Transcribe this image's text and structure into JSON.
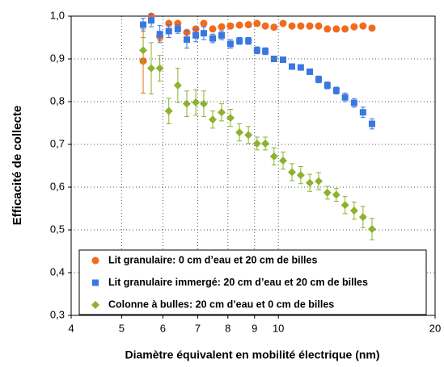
{
  "chart_data": {
    "type": "scatter",
    "xlabel": "Diamètre équivalent en mobilité électrique (nm)",
    "ylabel": "Efficacité de collecte",
    "x": [
      5.5,
      5.7,
      5.92,
      6.16,
      6.41,
      6.67,
      6.94,
      7.19,
      7.48,
      7.78,
      8.09,
      8.42,
      8.76,
      9.1,
      9.44,
      9.81,
      10.21,
      10.62,
      11.04,
      11.49,
      11.95,
      12.42,
      12.92,
      13.43,
      13.98,
      14.54,
      15.13
    ],
    "series": [
      {
        "name": "Lit granulaire: 0 cm d’eau et 20 cm de billes",
        "color": "#f26a1b",
        "marker": "circle",
        "values": [
          0.895,
          1.0,
          0.952,
          0.983,
          0.983,
          0.962,
          0.97,
          0.983,
          0.97,
          0.975,
          0.977,
          0.979,
          0.98,
          0.983,
          0.977,
          0.974,
          0.983,
          0.977,
          0.977,
          0.977,
          0.977,
          0.97,
          0.97,
          0.97,
          0.975,
          0.977,
          0.972
        ],
        "errors": [
          0.075,
          0.005,
          0.01,
          0.005,
          0.005,
          0.005,
          0.005,
          0.005,
          0.005,
          0.005,
          0.005,
          0.005,
          0.005,
          0.005,
          0.005,
          0.005,
          0.005,
          0.005,
          0.005,
          0.005,
          0.005,
          0.005,
          0.005,
          0.005,
          0.005,
          0.005,
          0.005
        ]
      },
      {
        "name": "Lit granulaire immergé: 20 cm d’eau et 20 cm de billes",
        "color": "#3a78e0",
        "marker": "square",
        "values": [
          0.98,
          0.99,
          0.958,
          0.965,
          0.97,
          0.945,
          0.955,
          0.96,
          0.948,
          0.955,
          0.935,
          0.942,
          0.942,
          0.92,
          0.918,
          0.9,
          0.898,
          0.882,
          0.88,
          0.87,
          0.852,
          0.838,
          0.826,
          0.81,
          0.797,
          0.775,
          0.748
        ],
        "errors": [
          0.015,
          0.015,
          0.02,
          0.015,
          0.01,
          0.02,
          0.015,
          0.015,
          0.01,
          0.01,
          0.01,
          0.008,
          0.008,
          0.008,
          0.008,
          0.006,
          0.006,
          0.006,
          0.006,
          0.006,
          0.008,
          0.008,
          0.008,
          0.01,
          0.01,
          0.012,
          0.012
        ]
      },
      {
        "name": "Colonne à bulles: 20 cm d’eau et 0 cm de billes",
        "color": "#8db32e",
        "marker": "diamond",
        "values": [
          0.92,
          0.878,
          0.878,
          0.778,
          0.838,
          0.795,
          0.798,
          0.795,
          0.758,
          0.775,
          0.762,
          0.728,
          0.722,
          0.702,
          0.702,
          0.672,
          0.662,
          0.635,
          0.628,
          0.61,
          0.614,
          0.587,
          0.582,
          0.558,
          0.545,
          0.53,
          0.502
        ],
        "errors": [
          0.03,
          0.06,
          0.03,
          0.03,
          0.04,
          0.03,
          0.03,
          0.03,
          0.02,
          0.02,
          0.02,
          0.02,
          0.02,
          0.015,
          0.015,
          0.02,
          0.02,
          0.02,
          0.02,
          0.02,
          0.02,
          0.015,
          0.015,
          0.02,
          0.02,
          0.025,
          0.025
        ]
      }
    ],
    "xlim": [
      4,
      20
    ],
    "xticks": [
      4,
      5,
      6,
      7,
      8,
      9,
      10,
      20
    ],
    "xscale": "log",
    "ylim": [
      0.3,
      1.0
    ],
    "yticks": [
      {
        "value": 0.3,
        "label": "0,3"
      },
      {
        "value": 0.4,
        "label": "0,4"
      },
      {
        "value": 0.5,
        "label": "0,5"
      },
      {
        "value": 0.6,
        "label": "0,6"
      },
      {
        "value": 0.7,
        "label": "0,7"
      },
      {
        "value": 0.8,
        "label": "0,8"
      },
      {
        "value": 0.9,
        "label": "0,9"
      },
      {
        "value": 1.0,
        "label": "1,0"
      }
    ],
    "grid": true,
    "legend": "lower"
  }
}
